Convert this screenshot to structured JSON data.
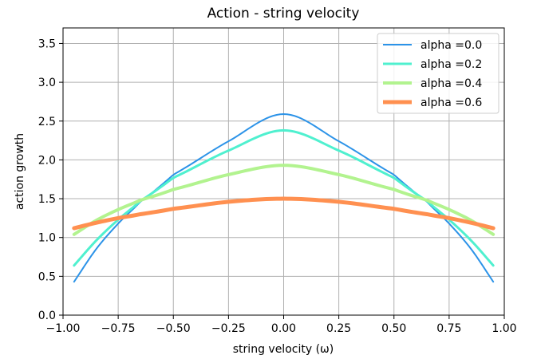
{
  "chart_data": {
    "type": "line",
    "title": "Action - string velocity",
    "xlabel": "string velocity (ω)",
    "ylabel": "action growth",
    "xlim": [
      -1.0,
      1.0
    ],
    "ylim": [
      0.0,
      3.7
    ],
    "xticks": [
      -1.0,
      -0.75,
      -0.5,
      -0.25,
      0.0,
      0.25,
      0.5,
      0.75,
      1.0
    ],
    "xtick_labels": [
      "−1.00",
      "−0.75",
      "−0.50",
      "−0.25",
      "0.00",
      "0.25",
      "0.50",
      "0.75",
      "1.00"
    ],
    "yticks": [
      0.0,
      0.5,
      1.0,
      1.5,
      2.0,
      2.5,
      3.0,
      3.5
    ],
    "ytick_labels": [
      "0.0",
      "0.5",
      "1.0",
      "1.5",
      "2.0",
      "2.5",
      "3.0",
      "3.5"
    ],
    "grid": true,
    "legend_position": "top-right",
    "x": [
      -0.95,
      -0.85,
      -0.75,
      -0.65,
      -0.5,
      -0.25,
      0.0,
      0.25,
      0.5,
      0.65,
      0.75,
      0.85,
      0.95
    ],
    "series": [
      {
        "name": "alpha =0.0",
        "color": "#2c93e8",
        "values": [
          0.43,
          0.85,
          1.18,
          1.46,
          1.81,
          2.24,
          2.59,
          2.24,
          1.81,
          1.46,
          1.18,
          0.85,
          0.43
        ]
      },
      {
        "name": "alpha =0.2",
        "color": "#4ff0cf",
        "values": [
          0.64,
          0.96,
          1.23,
          1.47,
          1.77,
          2.12,
          2.38,
          2.12,
          1.77,
          1.47,
          1.23,
          0.96,
          0.64
        ]
      },
      {
        "name": "alpha =0.4",
        "color": "#b2f38f",
        "values": [
          1.04,
          1.22,
          1.36,
          1.48,
          1.62,
          1.81,
          1.93,
          1.81,
          1.62,
          1.48,
          1.36,
          1.22,
          1.04
        ]
      },
      {
        "name": "alpha =0.6",
        "color": "#ff9050",
        "values": [
          1.12,
          1.19,
          1.25,
          1.3,
          1.37,
          1.46,
          1.5,
          1.46,
          1.37,
          1.3,
          1.25,
          1.19,
          1.12
        ]
      }
    ]
  }
}
